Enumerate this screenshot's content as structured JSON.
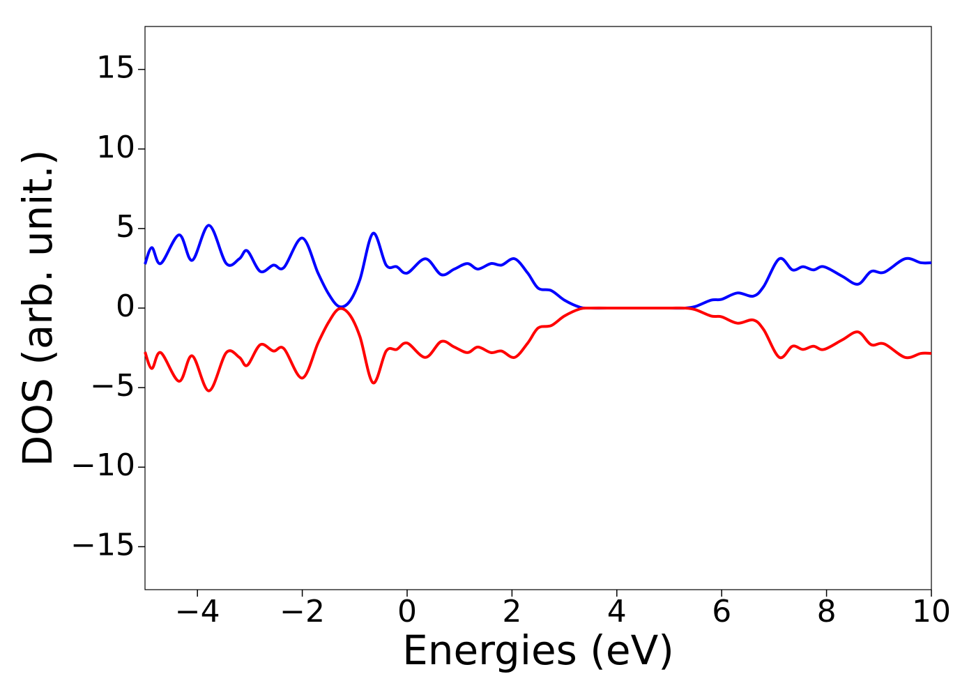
{
  "chart_data": {
    "type": "line",
    "xlabel": "Energies (eV)",
    "ylabel": "DOS (arb. unit.)",
    "x": [
      -5,
      -4.87,
      -4.7,
      -4.35,
      -4.1,
      -3.78,
      -3.45,
      -3.2,
      -3.05,
      -2.8,
      -2.55,
      -2.35,
      -2.0,
      -1.7,
      -1.5,
      -1.3,
      -1.1,
      -0.9,
      -0.65,
      -0.4,
      -0.2,
      0.0,
      0.35,
      0.65,
      0.9,
      1.15,
      1.35,
      1.6,
      1.8,
      2.05,
      2.3,
      2.5,
      2.75,
      3.0,
      3.3,
      3.5,
      4.0,
      4.5,
      5.0,
      5.3,
      5.5,
      5.8,
      6.0,
      6.3,
      6.6,
      6.8,
      7.1,
      7.35,
      7.55,
      7.75,
      7.95,
      8.3,
      8.6,
      8.85,
      9.1,
      9.5,
      9.8,
      10
    ],
    "series": [
      {
        "color": "#0000ff",
        "values": [
          2.76,
          3.8,
          2.8,
          4.6,
          3.0,
          5.2,
          2.8,
          3.1,
          3.6,
          2.3,
          2.7,
          2.55,
          4.4,
          2.2,
          0.9,
          0.1,
          0.4,
          1.8,
          4.7,
          2.7,
          2.6,
          2.2,
          3.1,
          2.1,
          2.45,
          2.8,
          2.45,
          2.8,
          2.7,
          3.1,
          2.2,
          1.25,
          1.1,
          0.5,
          0.05,
          0,
          0,
          0,
          0,
          0,
          0.1,
          0.5,
          0.55,
          0.95,
          0.75,
          1.35,
          3.1,
          2.4,
          2.6,
          2.4,
          2.6,
          2.0,
          1.5,
          2.3,
          2.25,
          3.1,
          2.85,
          2.85
        ]
      },
      {
        "color": "#ff0000",
        "values": [
          -2.76,
          -3.8,
          -2.8,
          -4.6,
          -3.0,
          -5.2,
          -2.8,
          -3.1,
          -3.6,
          -2.3,
          -2.7,
          -2.55,
          -4.4,
          -2.2,
          -0.9,
          -0.05,
          -0.4,
          -1.8,
          -4.7,
          -2.7,
          -2.6,
          -2.2,
          -3.1,
          -2.1,
          -2.45,
          -2.8,
          -2.45,
          -2.8,
          -2.7,
          -3.1,
          -2.2,
          -1.25,
          -1.1,
          -0.5,
          -0.05,
          0,
          0,
          0,
          0,
          0,
          -0.1,
          -0.5,
          -0.55,
          -0.95,
          -0.75,
          -1.35,
          -3.1,
          -2.4,
          -2.6,
          -2.4,
          -2.6,
          -2.0,
          -1.5,
          -2.3,
          -2.25,
          -3.1,
          -2.85,
          -2.85
        ]
      }
    ],
    "xlim": [
      -5,
      10
    ],
    "xticks": [
      {
        "value": -4,
        "label": "−4"
      },
      {
        "value": -2,
        "label": "−2"
      },
      0,
      2,
      4,
      6,
      8,
      10
    ],
    "ylim": [
      -17.7,
      17.7
    ],
    "yticks": [
      {
        "value": -15,
        "label": "−15"
      },
      {
        "value": -10,
        "label": "−10"
      },
      {
        "value": -5,
        "label": "−5"
      },
      0,
      5,
      10,
      15
    ]
  }
}
